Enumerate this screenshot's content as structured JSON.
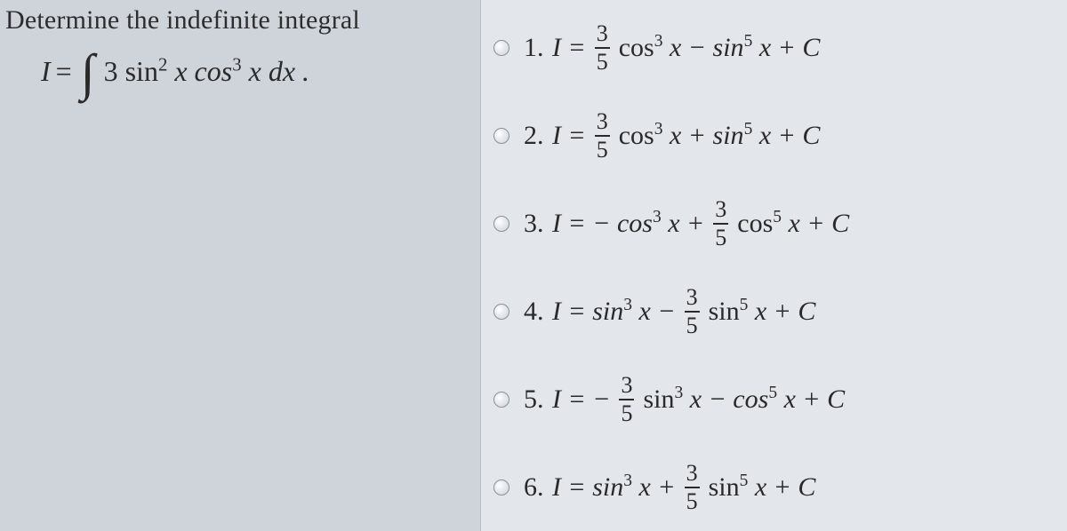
{
  "background_color": "#cfd4db",
  "panel_color": "#e3e6eb",
  "text_color": "#2a2a2a",
  "prompt": "Determine the indefinite integral",
  "lhs_I": "I",
  "equals": "=",
  "integrand_prefix": "3 sin",
  "integrand_sup1": "2",
  "integrand_mid": " x cos",
  "integrand_sup2": "3",
  "integrand_suffix": " x dx .",
  "options": [
    {
      "num": "1.",
      "parts": {
        "lead": "I  =",
        "frac_n": "3",
        "frac_d": "5",
        "a_fn": "cos",
        "a_pow": "3",
        "a_post": " x − sin",
        "b_pow": "5",
        "tail": " x + C"
      }
    },
    {
      "num": "2.",
      "parts": {
        "lead": "I  =",
        "frac_n": "3",
        "frac_d": "5",
        "a_fn": "cos",
        "a_pow": "3",
        "a_post": " x + sin",
        "b_pow": "5",
        "tail": " x + C"
      }
    },
    {
      "num": "3.",
      "parts": {
        "lead": "I  =  − cos",
        "a_pow": "3",
        "a_post": " x + ",
        "frac_n": "3",
        "frac_d": "5",
        "b_fn": "cos",
        "b_pow": "5",
        "tail": " x + C"
      }
    },
    {
      "num": "4.",
      "parts": {
        "lead": "I  =  sin",
        "a_pow": "3",
        "a_post": " x − ",
        "frac_n": "3",
        "frac_d": "5",
        "b_fn": "sin",
        "b_pow": "5",
        "tail": " x + C"
      }
    },
    {
      "num": "5.",
      "parts": {
        "lead": "I  =  − ",
        "frac_n": "3",
        "frac_d": "5",
        "a_fn": "sin",
        "a_pow": "3",
        "a_post": " x − cos",
        "b_pow": "5",
        "tail": " x + C"
      }
    },
    {
      "num": "6.",
      "parts": {
        "lead": "I  =  sin",
        "a_pow": "3",
        "a_post": " x + ",
        "frac_n": "3",
        "frac_d": "5",
        "b_fn": "sin",
        "b_pow": "5",
        "tail": " x + C"
      }
    }
  ]
}
